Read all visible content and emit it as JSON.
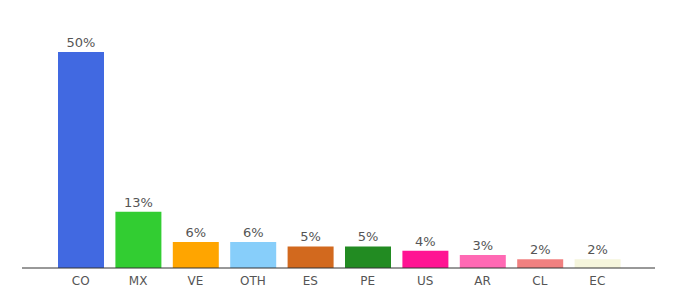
{
  "chart_data": {
    "type": "bar",
    "categories": [
      "CO",
      "MX",
      "VE",
      "OTH",
      "ES",
      "PE",
      "US",
      "AR",
      "CL",
      "EC"
    ],
    "values": [
      50,
      13,
      6,
      6,
      5,
      5,
      4,
      3,
      2,
      2
    ],
    "value_labels": [
      "50%",
      "13%",
      "6%",
      "6%",
      "5%",
      "5%",
      "4%",
      "3%",
      "2%",
      "2%"
    ],
    "colors": [
      "#4169e1",
      "#32cd32",
      "#ffa500",
      "#87cefa",
      "#d2691e",
      "#228b22",
      "#ff1493",
      "#ff69b4",
      "#f08080",
      "#f5f5dc"
    ],
    "ylim": [
      0,
      50
    ],
    "data_labels": true,
    "tick_labels": "x",
    "grid": false
  }
}
